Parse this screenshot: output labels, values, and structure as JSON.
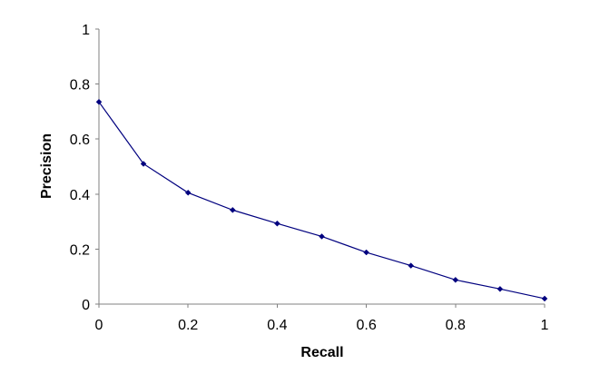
{
  "chart_data": {
    "type": "line",
    "title": "",
    "xlabel": "Recall",
    "ylabel": "Precision",
    "xlim": [
      0,
      1
    ],
    "ylim": [
      0,
      1
    ],
    "x_ticks": [
      "0",
      "0.2",
      "0.4",
      "0.6",
      "0.8",
      "1"
    ],
    "y_ticks": [
      "0",
      "0.2",
      "0.4",
      "0.6",
      "0.8",
      "1"
    ],
    "grid": false,
    "legend": "none",
    "series": [
      {
        "color": "#00007f",
        "marker": "diamond",
        "x": [
          0,
          0.1,
          0.2,
          0.3,
          0.4,
          0.5,
          0.6,
          0.7,
          0.8,
          0.9,
          1.0
        ],
        "y": [
          0.735,
          0.51,
          0.405,
          0.342,
          0.293,
          0.246,
          0.188,
          0.14,
          0.088,
          0.055,
          0.02
        ]
      }
    ]
  }
}
